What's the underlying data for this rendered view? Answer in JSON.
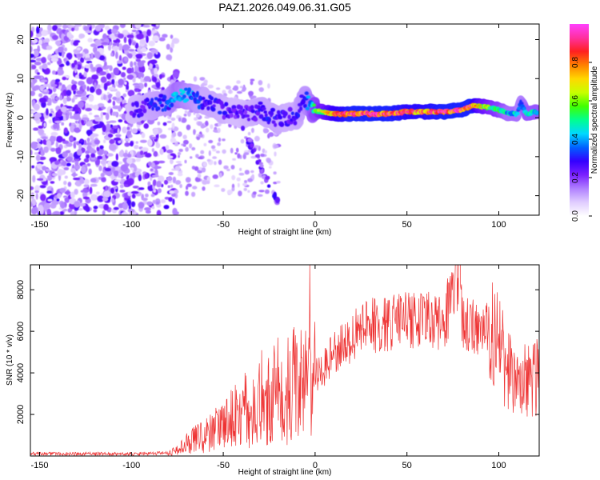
{
  "title": "PAZ1.2026.049.06.31.G05",
  "chart_data": [
    {
      "type": "heatmap",
      "name": "spectrogram",
      "xlabel": "Height of straight line (km)",
      "ylabel": "Frequency (Hz)",
      "xlim": [
        -155,
        122
      ],
      "ylim": [
        -25,
        24
      ],
      "xticks": [
        -150,
        -100,
        -50,
        0,
        50,
        100
      ],
      "yticks": [
        -20,
        -10,
        0,
        10,
        20
      ],
      "colorbar": {
        "label": "Normalized spectral amplitude",
        "range": [
          0,
          1
        ],
        "ticks": [
          0.0,
          0.2,
          0.4,
          0.6,
          0.8
        ],
        "tick_labels": [
          "0.0",
          "0.2",
          "0.4",
          "0.6",
          "0.8"
        ],
        "colors": [
          "#ffffff",
          "#e0ccff",
          "#b080ff",
          "#7a20ff",
          "#3300ff",
          "#0060ff",
          "#00d8ff",
          "#00ff90",
          "#40ff00",
          "#c8ff00",
          "#ffd800",
          "#ff8000",
          "#ff2020",
          "#ff30a0",
          "#ff40ff"
        ]
      },
      "ridge": {
        "x": [
          -100,
          -90,
          -80,
          -75,
          -70,
          -65,
          -60,
          -55,
          -50,
          -45,
          -40,
          -35,
          -30,
          -25,
          -20,
          -15,
          -10,
          -7,
          -5,
          -2,
          0,
          5,
          10,
          20,
          30,
          40,
          50,
          60,
          70,
          80,
          85,
          90,
          95,
          100,
          105,
          110,
          112,
          115,
          120
        ],
        "y": [
          2,
          3,
          4,
          6,
          5.5,
          5,
          4,
          3,
          2,
          1.5,
          1,
          1,
          2,
          0.5,
          -0.5,
          0,
          0.5,
          4,
          5,
          2,
          2,
          1.5,
          1,
          1,
          1,
          1,
          1.5,
          1.5,
          1.5,
          2,
          3,
          3,
          2.5,
          2,
          1,
          1,
          4,
          1,
          1.5
        ],
        "strength": [
          0.25,
          0.3,
          0.35,
          0.45,
          0.4,
          0.35,
          0.3,
          0.3,
          0.28,
          0.25,
          0.25,
          0.28,
          0.3,
          0.3,
          0.3,
          0.28,
          0.3,
          0.35,
          0.35,
          0.45,
          0.55,
          0.65,
          0.8,
          0.9,
          0.9,
          0.9,
          0.85,
          0.85,
          0.9,
          0.9,
          0.9,
          0.7,
          0.6,
          0.55,
          0.45,
          0.45,
          0.4,
          0.5,
          0.5
        ]
      }
    },
    {
      "type": "line",
      "name": "snr",
      "xlabel": "Height of straight line (km)",
      "ylabel": "SNR (10 * v/v)",
      "color": "#ee3333",
      "xlim": [
        -155,
        122
      ],
      "ylim": [
        0,
        9200
      ],
      "xticks": [
        -150,
        -100,
        -50,
        0,
        50,
        100
      ],
      "yticks": [
        2000,
        4000,
        6000,
        8000
      ],
      "x": [
        -155,
        -140,
        -120,
        -100,
        -90,
        -80,
        -75,
        -70,
        -60,
        -50,
        -40,
        -30,
        -20,
        -10,
        -3,
        -2,
        0,
        5,
        10,
        20,
        30,
        40,
        50,
        60,
        70,
        79,
        80,
        85,
        95,
        100,
        105,
        110,
        115,
        122
      ],
      "values": [
        100,
        100,
        100,
        100,
        120,
        150,
        300,
        600,
        1000,
        1500,
        2100,
        2800,
        3200,
        3500,
        9200,
        3800,
        3900,
        4300,
        5000,
        5700,
        6300,
        6400,
        6600,
        6600,
        6400,
        9200,
        6500,
        6300,
        6100,
        5300,
        4200,
        3300,
        3700,
        3800
      ]
    }
  ]
}
